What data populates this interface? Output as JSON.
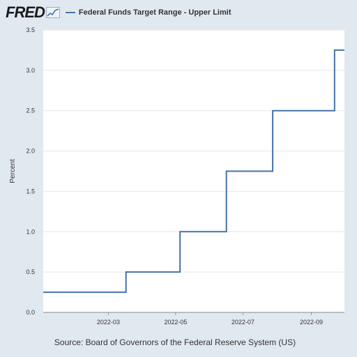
{
  "header": {
    "logo_text": "FRED",
    "legend_label": "Federal Funds Target Range - Upper Limit"
  },
  "source": "Source: Board of Governors of the Federal Reserve System (US)",
  "colors": {
    "series": "#4572a7",
    "page_bg": "#e1e9f0",
    "plot_bg": "#ffffff",
    "grid": "#e6e6e6"
  },
  "chart_data": {
    "type": "line",
    "step": true,
    "title": "",
    "xlabel": "",
    "ylabel": "Percent",
    "ylim": [
      0,
      3.5
    ],
    "xlim": [
      "2022-01-01",
      "2022-10-01"
    ],
    "x_ticks": [
      "2022-03",
      "2022-05",
      "2022-07",
      "2022-09"
    ],
    "y_ticks": [
      "0.0",
      "0.5",
      "1.0",
      "1.5",
      "2.0",
      "2.5",
      "3.0",
      "3.5"
    ],
    "grid": true,
    "series": [
      {
        "name": "Federal Funds Target Range - Upper Limit",
        "x": [
          "2022-01-01",
          "2022-03-17",
          "2022-05-05",
          "2022-06-16",
          "2022-07-28",
          "2022-09-22",
          "2022-10-01"
        ],
        "y": [
          0.25,
          0.5,
          1.0,
          1.75,
          2.5,
          3.25,
          3.25
        ]
      }
    ]
  }
}
